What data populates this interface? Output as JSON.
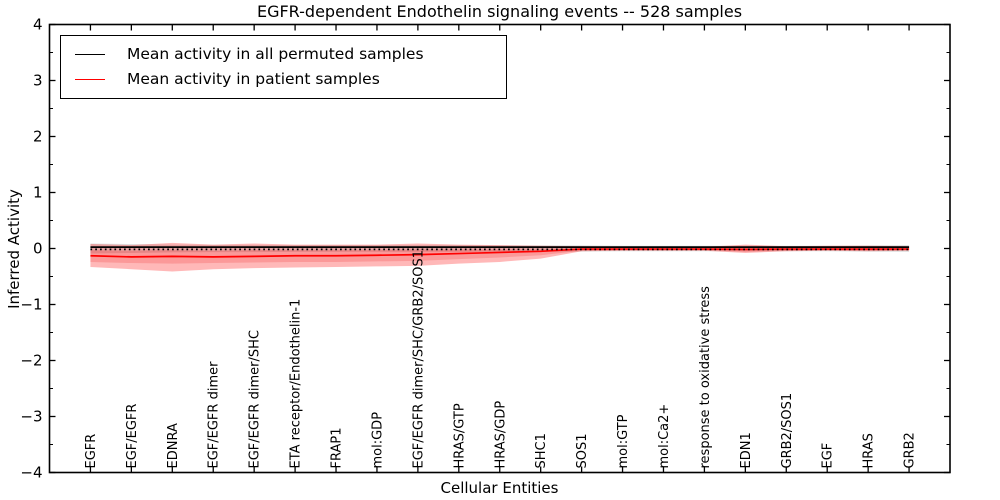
{
  "title": "EGFR-dependent Endothelin signaling events -- 528 samples",
  "axes": {
    "xlabel": "Cellular Entities",
    "ylabel": "Inferred Activity"
  },
  "legend": {
    "entries": [
      {
        "name": "permuted",
        "label": "Mean activity in all permuted samples",
        "color": "#000000"
      },
      {
        "name": "patient",
        "label": "Mean activity in patient samples",
        "color": "#ff0000"
      }
    ]
  },
  "colors": {
    "frame": "#000000",
    "permuted_line": "#000000",
    "patient_line": "#ff0000",
    "permuted_band": "rgba(0,0,0,0.13)",
    "patient_band_outer": "rgba(255,0,0,0.28)",
    "patient_band_inner": "rgba(230,0,0,0.17)"
  },
  "chart_data": {
    "type": "line",
    "title": "EGFR-dependent Endothelin signaling events -- 528 samples",
    "xlabel": "Cellular Entities",
    "ylabel": "Inferred Activity",
    "ylim": [
      -4,
      4
    ],
    "ytick_step": 1,
    "grid": false,
    "legend_position": "upper left",
    "categories": [
      "EGFR",
      "EGF/EGFR",
      "EDNRA",
      "EGF/EGFR dimer",
      "EGF/EGFR dimer/SHC",
      "ETA receptor/Endothelin-1",
      "FRAP1",
      "mol:GDP",
      "EGF/EGFR dimer/SHC/GRB2/SOS1",
      "HRAS/GTP",
      "HRAS/GDP",
      "SHC1",
      "SOS1",
      "mol:GTP",
      "mol:Ca2+",
      "response to oxidative stress",
      "EDN1",
      "GRB2/SOS1",
      "EGF",
      "HRAS",
      "GRB2"
    ],
    "series": [
      {
        "name": "Mean activity in all permuted samples",
        "style": "solid",
        "color_key": "permuted_line",
        "values": [
          0.025,
          0.025,
          0.025,
          0.025,
          0.025,
          0.025,
          0.025,
          0.025,
          0.025,
          0.025,
          0.025,
          0.025,
          0.025,
          0.025,
          0.025,
          0.025,
          0.025,
          0.025,
          0.025,
          0.025,
          0.025
        ]
      },
      {
        "name": "Mean activity in patient samples",
        "style": "solid",
        "color_key": "patient_line",
        "values": [
          -0.13,
          -0.15,
          -0.14,
          -0.15,
          -0.14,
          -0.13,
          -0.13,
          -0.12,
          -0.11,
          -0.09,
          -0.07,
          -0.05,
          -0.01,
          -0.01,
          -0.01,
          -0.01,
          -0.015,
          -0.01,
          -0.01,
          -0.01,
          -0.01
        ]
      },
      {
        "name": "zero-reference",
        "style": "dotted",
        "color_key": "permuted_line",
        "values": [
          -0.015,
          -0.015,
          -0.015,
          -0.015,
          -0.015,
          -0.015,
          -0.015,
          -0.015,
          -0.015,
          -0.015,
          -0.015,
          -0.015,
          -0.015,
          -0.015,
          -0.015,
          -0.015,
          -0.015,
          -0.015,
          -0.015,
          -0.015,
          -0.015
        ]
      }
    ],
    "bands": [
      {
        "name": "permuted-range",
        "color_key": "permuted_band",
        "upper": [
          0.09,
          0.08,
          0.07,
          0.065,
          0.065,
          0.06,
          0.06,
          0.06,
          0.06,
          0.06,
          0.055,
          0.055,
          0.055,
          0.05,
          0.05,
          0.05,
          0.05,
          0.05,
          0.05,
          0.055,
          0.06
        ],
        "lower": [
          -0.09,
          -0.08,
          -0.07,
          -0.065,
          -0.065,
          -0.06,
          -0.06,
          -0.06,
          -0.06,
          -0.06,
          -0.055,
          -0.055,
          -0.055,
          -0.05,
          -0.05,
          -0.05,
          -0.05,
          -0.05,
          -0.05,
          -0.055,
          -0.06
        ]
      },
      {
        "name": "patient-range-outer",
        "color_key": "patient_band_outer",
        "upper": [
          0.08,
          0.06,
          0.1,
          0.07,
          0.09,
          0.07,
          0.07,
          0.07,
          0.09,
          0.07,
          0.06,
          0.05,
          0.04,
          0.03,
          0.03,
          0.03,
          0.07,
          0.04,
          0.05,
          0.05,
          0.04
        ],
        "lower": [
          -0.33,
          -0.37,
          -0.41,
          -0.37,
          -0.35,
          -0.34,
          -0.33,
          -0.32,
          -0.31,
          -0.27,
          -0.24,
          -0.18,
          -0.05,
          -0.04,
          -0.04,
          -0.04,
          -0.08,
          -0.05,
          -0.04,
          -0.05,
          -0.04
        ]
      },
      {
        "name": "patient-range-inner",
        "color_key": "patient_band_inner",
        "upper": [
          -0.03,
          -0.04,
          -0.03,
          -0.04,
          -0.03,
          -0.03,
          -0.03,
          -0.03,
          -0.02,
          -0.02,
          -0.02,
          -0.02,
          0.02,
          0.02,
          0.02,
          0.02,
          0.03,
          0.02,
          0.02,
          0.02,
          0.02
        ],
        "lower": [
          -0.24,
          -0.26,
          -0.27,
          -0.26,
          -0.25,
          -0.24,
          -0.24,
          -0.23,
          -0.22,
          -0.19,
          -0.16,
          -0.12,
          -0.04,
          -0.03,
          -0.03,
          -0.03,
          -0.06,
          -0.04,
          -0.03,
          -0.04,
          -0.03
        ]
      }
    ]
  }
}
